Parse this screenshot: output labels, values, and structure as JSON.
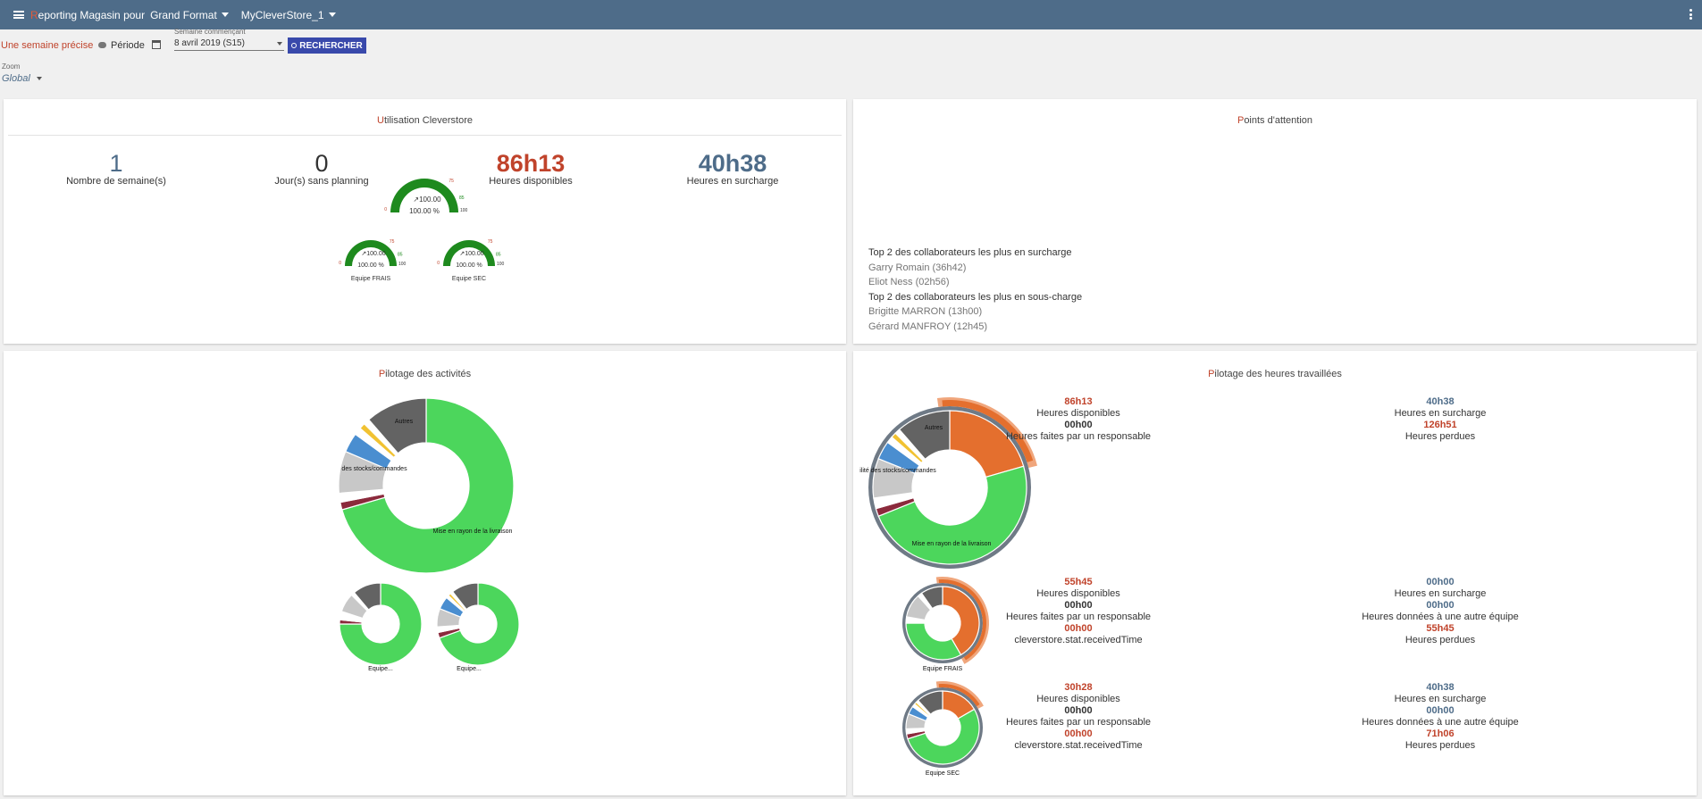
{
  "header": {
    "title_first_letter": "R",
    "title_rest": "eporting Magasin pour",
    "format": "Grand Format",
    "store": "MyCleverStore_1"
  },
  "filters": {
    "mode_selected": "Une semaine précise",
    "mode_other": "Période",
    "week_label": "Semaine commençant",
    "week_value": "8 avril 2019 (S15)",
    "search_button": "RECHERCHER",
    "zoom_label": "Zoom",
    "zoom_value": "Global"
  },
  "utilisation": {
    "title_first": "U",
    "title_rest": "tilisation Cleverstore",
    "kpis": [
      {
        "value": "1",
        "label": "Nombre de semaine(s)"
      },
      {
        "value": "0",
        "label": "Jour(s) sans planning"
      },
      {
        "value": "86h13",
        "label": "Heures disponibles"
      },
      {
        "value": "40h38",
        "label": "Heures en surcharge"
      }
    ],
    "gauges": [
      {
        "name": "",
        "value": 100,
        "trend": "100.00",
        "percent": "100.00 %",
        "min": "0",
        "t1": "75",
        "t2": "85",
        "t3": "100"
      },
      {
        "name": "Equipe FRAIS",
        "value": 100,
        "trend": "100.00",
        "percent": "100.00 %",
        "min": "0",
        "t1": "75",
        "t2": "85",
        "t3": "100"
      },
      {
        "name": "Equipe SEC",
        "value": 100,
        "trend": "100.00",
        "percent": "100.00 %",
        "min": "0",
        "t1": "75",
        "t2": "85",
        "t3": "100"
      }
    ]
  },
  "attention": {
    "title_first": "P",
    "title_rest": "oints d'attention",
    "surcharge_title": "Top 2 des collaborateurs les plus en surcharge",
    "surcharge": [
      "Garry Romain (36h42)",
      "Eliot Ness (02h56)"
    ],
    "souscharge_title": "Top 2 des collaborateurs les plus en sous-charge",
    "souscharge": [
      "Brigitte MARRON (13h00)",
      "Gérard MANFROY (12h45)"
    ]
  },
  "activites": {
    "title_first": "P",
    "title_rest": "ilotage des activités",
    "main_labels": {
      "autres": "Autres",
      "stocks": "des stocks/commandes",
      "rayon": "Mise en rayon de la livraison"
    },
    "small_labels": [
      "Equipe...",
      "Equipe..."
    ]
  },
  "heures": {
    "title_first": "P",
    "title_rest": "ilotage des heures travaillées",
    "main_labels": {
      "autres": "Autres",
      "stocks": "ilité des stocks/commandes",
      "rayon": "Mise en rayon de la livraison"
    },
    "chart_names": [
      "Equipe FRAIS",
      "Equipe SEC"
    ],
    "global": {
      "dispo": "86h13",
      "dispo_label": "Heures disponibles",
      "resp": "00h00",
      "resp_label": "Heures faites par un responsable",
      "surcharge": "40h38",
      "surcharge_label": "Heures en surcharge",
      "perdues": "126h51",
      "perdues_label": "Heures perdues"
    },
    "teams": [
      {
        "dispo": "55h45",
        "dispo_label": "Heures disponibles",
        "resp": "00h00",
        "resp_label": "Heures faites par un responsable",
        "received": "00h00",
        "received_label": "cleverstore.stat.receivedTime",
        "surcharge": "00h00",
        "surcharge_label": "Heures en surcharge",
        "donnees": "00h00",
        "donnees_label": "Heures données à une autre équipe",
        "perdues": "55h45",
        "perdues_label": "Heures perdues"
      },
      {
        "dispo": "30h28",
        "dispo_label": "Heures disponibles",
        "resp": "00h00",
        "resp_label": "Heures faites par un responsable",
        "received": "00h00",
        "received_label": "cleverstore.stat.receivedTime",
        "surcharge": "40h38",
        "surcharge_label": "Heures en surcharge",
        "donnees": "00h00",
        "donnees_label": "Heures données à une autre équipe",
        "perdues": "71h06",
        "perdues_label": "Heures perdues"
      }
    ]
  },
  "colors": {
    "header_bg": "#4e6c89",
    "accent_red": "#c0432b",
    "accent_blue": "#4e6c89",
    "gauge_green": "#1e8a1e",
    "donut_green": "#4cd65c",
    "donut_gray": "#636363",
    "donut_orange": "#e46f2e",
    "button_blue": "#3949ab"
  }
}
